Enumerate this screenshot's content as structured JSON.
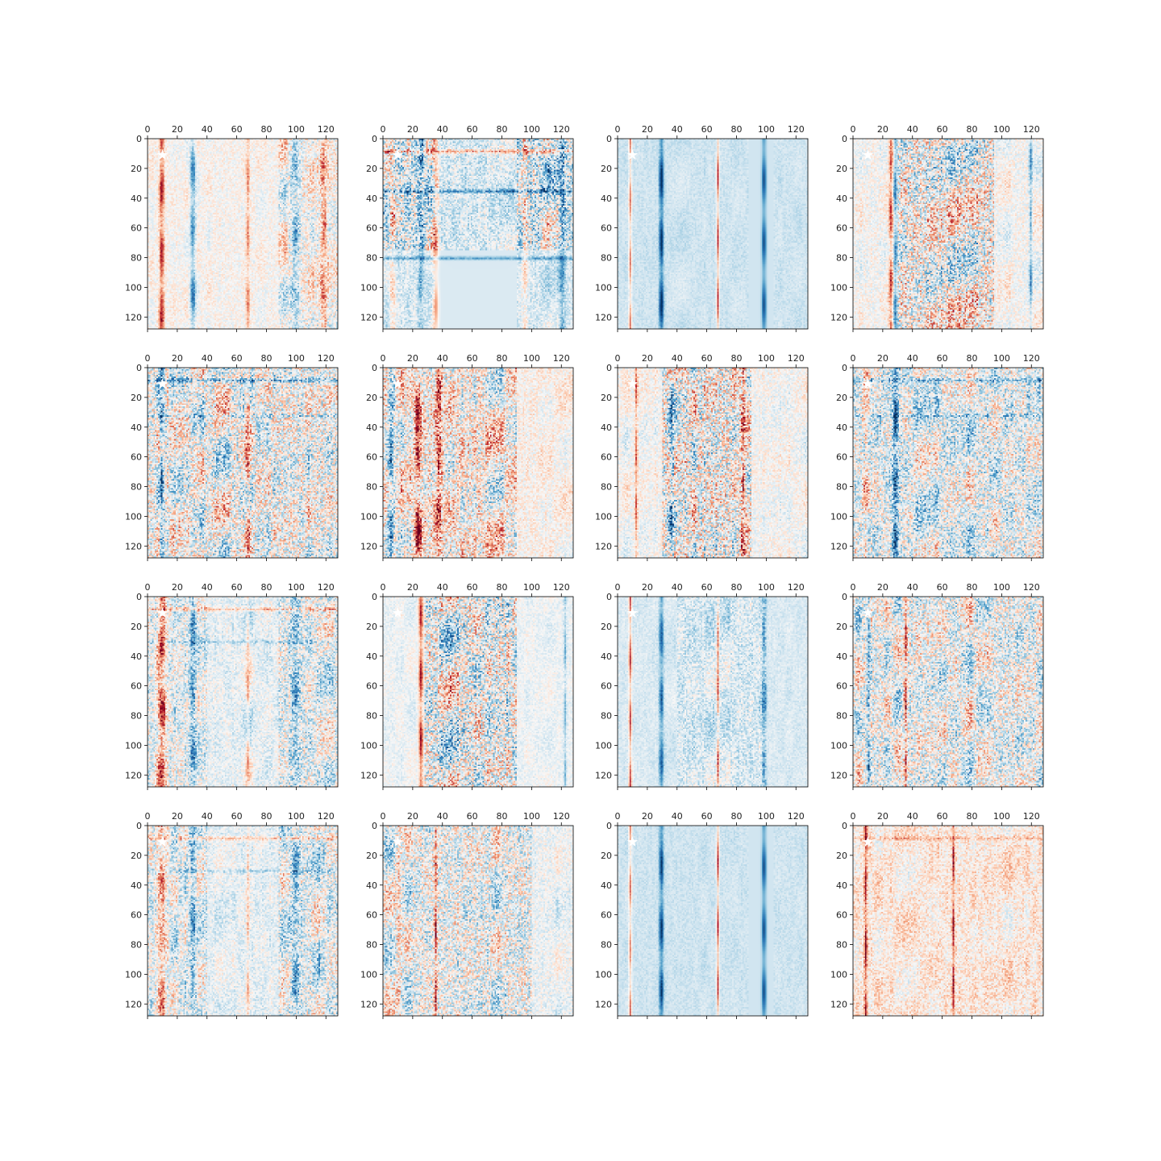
{
  "figure": {
    "rows": 4,
    "cols": 4
  },
  "colormap": {
    "name": "RdBu_r",
    "stops": [
      "#053061",
      "#2166ac",
      "#4393c3",
      "#92c5de",
      "#d1e5f0",
      "#f7f7f7",
      "#fddbc7",
      "#f4a582",
      "#d6604d",
      "#b2182b",
      "#67001f"
    ]
  },
  "chart_data": {
    "type": "heatmap",
    "panel_count": 16,
    "matrix_size": [
      128,
      128
    ],
    "xlim": [
      0,
      128
    ],
    "ylim": [
      128,
      0
    ],
    "x_ticks": [
      "0",
      "20",
      "40",
      "60",
      "80",
      "100",
      "120"
    ],
    "y_ticks": [
      "0",
      "20",
      "40",
      "60",
      "80",
      "100",
      "120"
    ],
    "x_axis_position": "top",
    "marker": {
      "shape": "star",
      "color": "#ffffff",
      "x": 10,
      "y": 11
    },
    "panels": [
      {
        "row": 0,
        "col": 0,
        "base": 0.02,
        "bands": [
          [
            9,
            1.7,
            0.85
          ],
          [
            30,
            1.8,
            -0.75
          ],
          [
            67,
            1.2,
            0.5
          ],
          [
            99,
            3,
            -0.5
          ],
          [
            118,
            2,
            0.5
          ]
        ],
        "region": [
          [
            88,
            128,
            0,
            128,
            0.25
          ]
        ],
        "noise": 0.25,
        "hlines": []
      },
      {
        "row": 0,
        "col": 1,
        "base": -0.15,
        "bands": [
          [
            6,
            2,
            0.4
          ],
          [
            25,
            2,
            -0.4
          ],
          [
            35,
            2,
            0.6
          ],
          [
            95,
            2,
            0.4
          ],
          [
            120,
            2,
            -0.5
          ]
        ],
        "region": [
          [
            0,
            35,
            0,
            128,
            0.35
          ],
          [
            90,
            128,
            0,
            128,
            0.35
          ],
          [
            0,
            128,
            75,
            128,
            -0.45
          ]
        ],
        "noise": 0.4,
        "hlines": [
          [
            8,
            0.7
          ],
          [
            35,
            -0.6
          ],
          [
            80,
            -0.5
          ]
        ]
      },
      {
        "row": 0,
        "col": 2,
        "base": -0.2,
        "bands": [
          [
            8,
            1,
            0.8
          ],
          [
            29,
            1.5,
            -0.9
          ],
          [
            67,
            0.8,
            0.95
          ],
          [
            98,
            1.5,
            -0.7
          ]
        ],
        "region": [
          [
            88,
            105,
            0,
            128,
            -0.3
          ]
        ],
        "noise": 0.12,
        "hlines": []
      },
      {
        "row": 0,
        "col": 3,
        "base": 0.0,
        "bands": [
          [
            25,
            1.5,
            0.7
          ],
          [
            28,
            1.5,
            -0.7
          ],
          [
            119,
            1,
            -0.6
          ]
        ],
        "region": [
          [
            30,
            95,
            0,
            128,
            0.5
          ]
        ],
        "noise": 0.3,
        "hlines": []
      },
      {
        "row": 1,
        "col": 0,
        "base": -0.03,
        "bands": [
          [
            9,
            1.5,
            -0.6
          ],
          [
            67,
            1.5,
            0.5
          ]
        ],
        "region": [
          [
            0,
            128,
            0,
            128,
            0.35
          ]
        ],
        "noise": 0.35,
        "hlines": [
          [
            8,
            -0.6
          ],
          [
            32,
            -0.3
          ]
        ]
      },
      {
        "row": 1,
        "col": 1,
        "base": 0.05,
        "bands": [
          [
            5,
            2,
            -0.7
          ],
          [
            23,
            2,
            0.8
          ],
          [
            37,
            2,
            0.7
          ]
        ],
        "region": [
          [
            0,
            90,
            0,
            128,
            0.4
          ]
        ],
        "noise": 0.3,
        "hlines": []
      },
      {
        "row": 1,
        "col": 2,
        "base": 0.0,
        "bands": [
          [
            12,
            1,
            0.6
          ],
          [
            36,
            1.5,
            -0.6
          ],
          [
            84,
            1.5,
            0.7
          ]
        ],
        "region": [
          [
            30,
            90,
            0,
            128,
            0.5
          ]
        ],
        "noise": 0.3,
        "hlines": []
      },
      {
        "row": 1,
        "col": 3,
        "base": -0.08,
        "bands": [
          [
            8,
            2,
            0.4
          ],
          [
            28,
            2,
            -0.8
          ]
        ],
        "region": [
          [
            0,
            128,
            0,
            128,
            0.35
          ]
        ],
        "noise": 0.3,
        "hlines": [
          [
            8,
            -0.5
          ],
          [
            32,
            -0.3
          ]
        ]
      },
      {
        "row": 2,
        "col": 0,
        "base": -0.08,
        "bands": [
          [
            9,
            3,
            0.85
          ],
          [
            30,
            2,
            -0.6
          ],
          [
            67,
            1,
            0.4
          ],
          [
            99,
            3,
            -0.4
          ]
        ],
        "region": [
          [
            88,
            128,
            0,
            128,
            0.3
          ],
          [
            0,
            40,
            0,
            128,
            0.25
          ]
        ],
        "noise": 0.3,
        "hlines": [
          [
            8,
            0.5
          ],
          [
            30,
            -0.3
          ]
        ]
      },
      {
        "row": 2,
        "col": 1,
        "base": -0.05,
        "bands": [
          [
            25,
            1.5,
            0.9
          ],
          [
            122,
            1,
            -0.4
          ]
        ],
        "region": [
          [
            28,
            90,
            0,
            128,
            0.6
          ]
        ],
        "noise": 0.2,
        "hlines": []
      },
      {
        "row": 2,
        "col": 2,
        "base": -0.15,
        "bands": [
          [
            8,
            1,
            0.95
          ],
          [
            29,
            1.5,
            -0.7
          ],
          [
            67,
            0.8,
            0.7
          ],
          [
            98,
            1.5,
            -0.5
          ]
        ],
        "region": [
          [
            40,
            100,
            0,
            128,
            0.2
          ]
        ],
        "noise": 0.15,
        "hlines": []
      },
      {
        "row": 2,
        "col": 3,
        "base": -0.05,
        "bands": [
          [
            10,
            1,
            -0.5
          ],
          [
            35,
            1,
            0.8
          ]
        ],
        "region": [
          [
            0,
            128,
            0,
            128,
            0.35
          ]
        ],
        "noise": 0.3,
        "hlines": []
      },
      {
        "row": 3,
        "col": 0,
        "base": -0.08,
        "bands": [
          [
            9,
            3,
            0.6
          ],
          [
            30,
            2,
            -0.5
          ],
          [
            67,
            1,
            0.4
          ],
          [
            99,
            3,
            -0.4
          ]
        ],
        "region": [
          [
            88,
            128,
            0,
            128,
            0.3
          ],
          [
            0,
            40,
            0,
            128,
            0.25
          ]
        ],
        "noise": 0.3,
        "hlines": [
          [
            8,
            0.5
          ],
          [
            30,
            -0.3
          ]
        ]
      },
      {
        "row": 3,
        "col": 1,
        "base": -0.05,
        "bands": [
          [
            35,
            1,
            0.8
          ],
          [
            10,
            1.5,
            0.3
          ]
        ],
        "region": [
          [
            0,
            100,
            0,
            128,
            0.35
          ]
        ],
        "noise": 0.3,
        "hlines": []
      },
      {
        "row": 3,
        "col": 2,
        "base": -0.2,
        "bands": [
          [
            8,
            1,
            0.8
          ],
          [
            29,
            1.5,
            -0.8
          ],
          [
            67,
            0.8,
            0.95
          ],
          [
            98,
            1.5,
            -0.7
          ]
        ],
        "region": [
          [
            88,
            105,
            0,
            128,
            -0.3
          ]
        ],
        "noise": 0.12,
        "hlines": []
      },
      {
        "row": 3,
        "col": 3,
        "base": 0.1,
        "bands": [
          [
            8,
            1,
            0.9
          ],
          [
            67,
            0.8,
            0.8
          ]
        ],
        "region": [
          [
            0,
            128,
            0,
            128,
            0.2
          ]
        ],
        "noise": 0.15,
        "hlines": [
          [
            8,
            0.3
          ]
        ]
      }
    ]
  }
}
